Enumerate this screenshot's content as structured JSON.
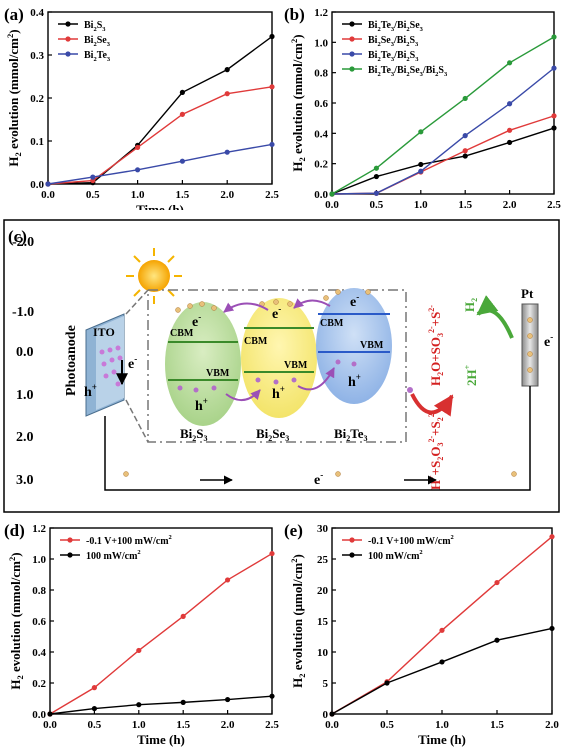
{
  "chart_data": [
    {
      "panel": "(a)",
      "type": "line",
      "xlabel": "Time (h)",
      "ylabel": "H2 evolution (mmol/cm2)",
      "x": [
        0.0,
        0.5,
        1.0,
        1.5,
        2.0,
        2.5
      ],
      "xlim": [
        0,
        2.5
      ],
      "ylim": [
        0,
        0.4
      ],
      "xticks": [
        "0.0",
        "0.5",
        "1.0",
        "1.5",
        "2.0",
        "2.5"
      ],
      "yticks": [
        "0.0",
        "0.1",
        "0.2",
        "0.3",
        "0.4"
      ],
      "legend": "top-left",
      "series": [
        {
          "name": "Bi2S3",
          "color": "#000000",
          "values": [
            0.0,
            0.003,
            0.09,
            0.213,
            0.266,
            0.343
          ]
        },
        {
          "name": "Bi2Se3",
          "color": "#e03a3a",
          "values": [
            0.0,
            0.008,
            0.085,
            0.162,
            0.21,
            0.226
          ]
        },
        {
          "name": "Bi2Te3",
          "color": "#3a4aa8",
          "values": [
            0.0,
            0.016,
            0.033,
            0.053,
            0.074,
            0.092
          ]
        }
      ]
    },
    {
      "panel": "(b)",
      "type": "line",
      "xlabel": "Time (h)",
      "ylabel": "H2 evolution (mmol/cm2)",
      "x": [
        0.0,
        0.5,
        1.0,
        1.5,
        2.0,
        2.5
      ],
      "xlim": [
        0,
        2.5
      ],
      "ylim": [
        0,
        1.2
      ],
      "xticks": [
        "0.0",
        "0.5",
        "1.0",
        "1.5",
        "2.0",
        "2.5"
      ],
      "yticks": [
        "0.0",
        "0.2",
        "0.4",
        "0.6",
        "0.8",
        "1.0",
        "1.2"
      ],
      "legend": "top-left",
      "series": [
        {
          "name": "Bi2Te3/Bi2Se3",
          "color": "#000000",
          "values": [
            0.0,
            0.115,
            0.195,
            0.25,
            0.34,
            0.435
          ]
        },
        {
          "name": "Bi2Se3/Bi2S3",
          "color": "#e03a3a",
          "values": [
            0.0,
            0.005,
            0.145,
            0.285,
            0.42,
            0.515
          ]
        },
        {
          "name": "Bi2Te3/Bi2S3",
          "color": "#3a4aa8",
          "values": [
            0.0,
            0.005,
            0.15,
            0.385,
            0.595,
            0.83
          ]
        },
        {
          "name": "Bi2Te3/Bi2Se3/Bi2S3",
          "color": "#2a9a3a",
          "values": [
            0.0,
            0.17,
            0.41,
            0.63,
            0.865,
            1.035
          ]
        }
      ]
    },
    {
      "panel": "(d)",
      "type": "line",
      "xlabel": "Time (h)",
      "ylabel": "H2 evolution (mmol/cm2)",
      "x": [
        0.0,
        0.5,
        1.0,
        1.5,
        2.0,
        2.5
      ],
      "xlim": [
        0,
        2.5
      ],
      "ylim": [
        0,
        1.2
      ],
      "xticks": [
        "0.0",
        "0.5",
        "1.0",
        "1.5",
        "2.0",
        "2.5"
      ],
      "yticks": [
        "0.0",
        "0.2",
        "0.4",
        "0.6",
        "0.8",
        "1.0",
        "1.2"
      ],
      "legend": "top-left",
      "series": [
        {
          "name": "-0.1 V+100 mW/cm2",
          "color": "#e03a3a",
          "values": [
            0.0,
            0.17,
            0.41,
            0.63,
            0.865,
            1.035
          ]
        },
        {
          "name": "100 mW/cm2",
          "color": "#000000",
          "values": [
            0.0,
            0.035,
            0.06,
            0.075,
            0.093,
            0.115
          ]
        }
      ]
    },
    {
      "panel": "(e)",
      "type": "line",
      "xlabel": "Time (h)",
      "ylabel": "H2 evolution (μmol/cm2)",
      "x": [
        0.0,
        0.5,
        1.0,
        1.5,
        2.0
      ],
      "xlim": [
        0,
        2.0
      ],
      "ylim": [
        0,
        30
      ],
      "xticks": [
        "0.0",
        "0.5",
        "1.0",
        "1.5",
        "2.0"
      ],
      "yticks": [
        "0",
        "5",
        "10",
        "15",
        "20",
        "25",
        "30"
      ],
      "legend": "top-left",
      "series": [
        {
          "name": "-0.1 V+100 mW/cm2",
          "color": "#e03a3a",
          "values": [
            0.0,
            5.2,
            13.5,
            21.2,
            28.6
          ]
        },
        {
          "name": "100 mW/cm2",
          "color": "#000000",
          "values": [
            0.0,
            5.0,
            8.4,
            11.9,
            13.8
          ]
        }
      ]
    }
  ],
  "diagram": {
    "panel": "(c)",
    "yticks": [
      "-2.0",
      "-1.0",
      "0.0",
      "1.0",
      "2.0",
      "3.0"
    ],
    "photoanode_label": "Photoanode",
    "ito_label": "ITO",
    "h_plus": "h+",
    "e_minus": "e-",
    "cbm": "CBM",
    "vbm": "VBM",
    "materials": [
      "Bi2S3",
      "Bi2Se3",
      "Bi2Te3"
    ],
    "reactants": "H2O+SO3 2-+S2-",
    "products": "H+ +S2O3 2-+S2 2-",
    "h2": "H2",
    "two_h_plus": "2H+",
    "pt": "Pt",
    "circuit_e": "e-"
  }
}
